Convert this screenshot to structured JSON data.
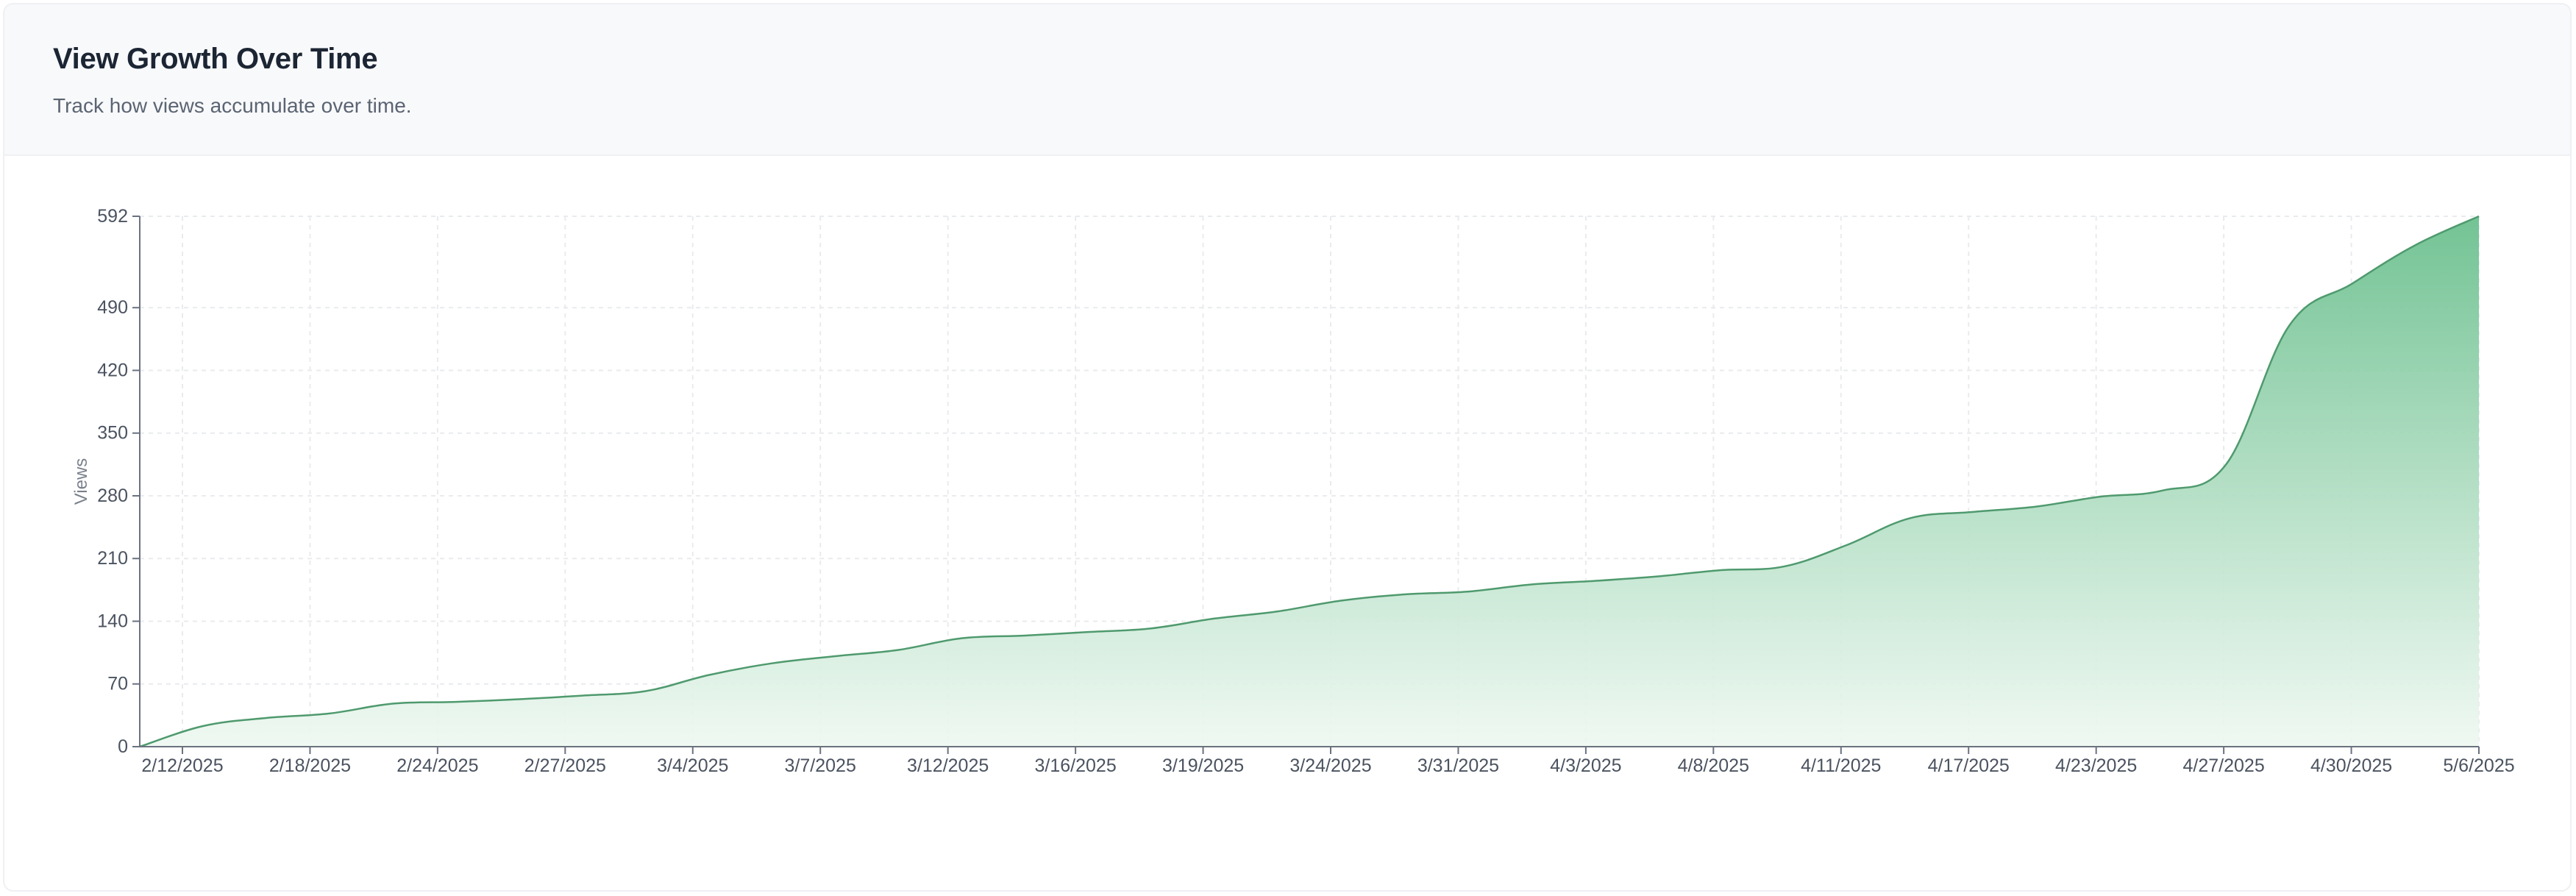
{
  "header": {
    "title": "View Growth Over Time",
    "subtitle": "Track how views accumulate over time."
  },
  "colors": {
    "line": "#4f9a6e",
    "fill_top": "#6cc08f",
    "fill_bottom": "#eef8f1",
    "grid": "#e9ebee",
    "axis": "#6b7280"
  },
  "chart_data": {
    "type": "area",
    "title": "",
    "xlabel": "",
    "ylabel": "Views",
    "ylim": [
      0,
      592
    ],
    "yticks": [
      0,
      70,
      140,
      210,
      280,
      350,
      420,
      490,
      592
    ],
    "grid": true,
    "legend": "none",
    "x_tick_labels": [
      "2/12/2025",
      "2/18/2025",
      "2/24/2025",
      "2/27/2025",
      "3/4/2025",
      "3/7/2025",
      "3/12/2025",
      "3/16/2025",
      "3/19/2025",
      "3/24/2025",
      "3/31/2025",
      "4/3/2025",
      "4/8/2025",
      "4/11/2025",
      "4/17/2025",
      "4/23/2025",
      "4/27/2025",
      "4/30/2025",
      "5/6/2025"
    ],
    "series": [
      {
        "values": [
          0,
          23,
          32,
          37,
          48,
          50,
          53,
          57,
          62,
          80,
          93,
          101,
          108,
          121,
          124,
          128,
          132,
          143,
          151,
          163,
          170,
          173,
          181,
          185,
          190,
          197,
          201,
          225,
          255,
          262,
          268,
          279,
          286,
          315,
          470,
          517,
          560,
          592
        ]
      }
    ]
  }
}
